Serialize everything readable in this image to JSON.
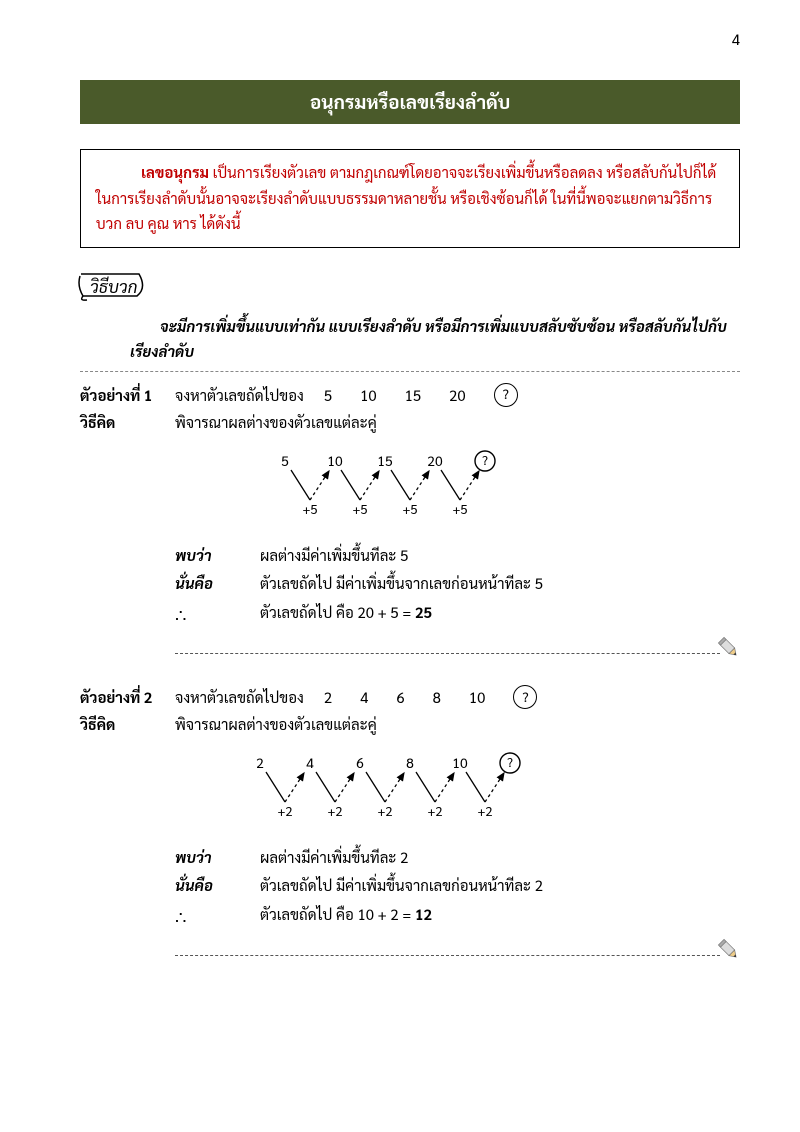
{
  "page_number": "4",
  "title": "อนุกรมหรือเลขเรียงลำดับ",
  "intro": {
    "bold_lead": "เลขอนุกรม",
    "text": "เป็นการเรียงตัวเลข ตามกฎเกณฑ์โดยอาจจะเรียงเพิ่มขึ้นหรือลดลง หรือสลับกันไปก็ได้  ในการเรียงลำดับนั้นอาจจะเรียงลำดับแบบธรรมดาหลายชั้น หรือเชิงซ้อนก็ได้ ในที่นี้พอจะแยกตามวิธีการ บวก ลบ คูณ หาร ได้ดังนี้",
    "text_color": "#c00000"
  },
  "method_label": "วิธีบวก",
  "method_description": "จะมีการเพิ่มขึ้นแบบเท่ากัน แบบเรียงลำดับ หรือมีการเพิ่มแบบสลับซับซ้อน หรือสลับกันไปกับเรียงลำดับ",
  "examples": [
    {
      "ex_label": "ตัวอย่างที่ 1",
      "question_prefix": "จงหาตัวเลขถัดไปของ",
      "sequence": [
        "5",
        "10",
        "15",
        "20"
      ],
      "method_label": "วิธีคิด",
      "method_text": "พิจารณาผลต่างของตัวเลขแต่ละคู่",
      "diagram": {
        "values": [
          "5",
          "10",
          "15",
          "20"
        ],
        "diffs": [
          "+5",
          "+5",
          "+5",
          "+5"
        ],
        "unknown": "?"
      },
      "analysis": [
        {
          "label": "พบว่า",
          "text": "ผลต่างมีค่าเพิ่มขึ้นทีละ 5"
        },
        {
          "label": "นั่นคือ",
          "text": "ตัวเลขถัดไป มีค่าเพิ่มขึ้นจากเลขก่อนหน้าทีละ 5"
        }
      ],
      "therefore": {
        "symbol": "∴",
        "text_prefix": "ตัวเลขถัดไป คือ 20 + 5 = ",
        "answer": "25"
      }
    },
    {
      "ex_label": "ตัวอย่างที่ 2",
      "question_prefix": "จงหาตัวเลขถัดไปของ",
      "sequence": [
        "2",
        "4",
        "6",
        "8",
        "10"
      ],
      "method_label": "วิธีคิด",
      "method_text": "พิจารณาผลต่างของตัวเลขแต่ละคู่",
      "diagram": {
        "values": [
          "2",
          "4",
          "6",
          "8",
          "10"
        ],
        "diffs": [
          "+2",
          "+2",
          "+2",
          "+2",
          "+2"
        ],
        "unknown": "?"
      },
      "analysis": [
        {
          "label": "พบว่า",
          "text": "ผลต่างมีค่าเพิ่มขึ้นทีละ 2"
        },
        {
          "label": "นั่นคือ",
          "text": "ตัวเลขถัดไป มีค่าเพิ่มขึ้นจากเลขก่อนหน้าทีละ 2"
        }
      ],
      "therefore": {
        "symbol": "∴",
        "text_prefix": "ตัวเลขถัดไป คือ 10 + 2 = ",
        "answer": "12"
      }
    }
  ],
  "colors": {
    "title_bg": "#4a5a2a",
    "title_fg": "#ffffff",
    "intro_fg": "#c00000",
    "arrow_down": "#000000",
    "arrow_up_dash": "#000000"
  }
}
